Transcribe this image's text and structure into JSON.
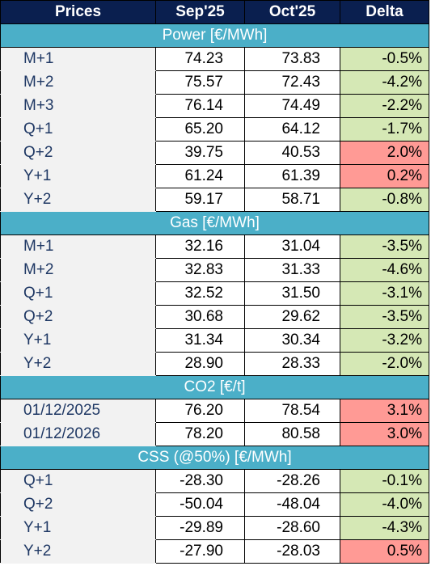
{
  "header": {
    "col1": "Prices",
    "col2": "Sep'25",
    "col3": "Oct'25",
    "col4": "Delta"
  },
  "sections": [
    {
      "title": "Power [€/MWh]",
      "rows": [
        {
          "label": "M+1",
          "sep": "74.23",
          "oct": "73.83",
          "delta": "-0.5%"
        },
        {
          "label": "M+2",
          "sep": "75.57",
          "oct": "72.43",
          "delta": "-4.2%"
        },
        {
          "label": "M+3",
          "sep": "76.14",
          "oct": "74.49",
          "delta": "-2.2%"
        },
        {
          "label": "Q+1",
          "sep": "65.20",
          "oct": "64.12",
          "delta": "-1.7%"
        },
        {
          "label": "Q+2",
          "sep": "39.75",
          "oct": "40.53",
          "delta": "2.0%"
        },
        {
          "label": "Y+1",
          "sep": "61.24",
          "oct": "61.39",
          "delta": "0.2%"
        },
        {
          "label": "Y+2",
          "sep": "59.17",
          "oct": "58.71",
          "delta": "-0.8%"
        }
      ]
    },
    {
      "title": "Gas [€/MWh]",
      "rows": [
        {
          "label": "M+1",
          "sep": "32.16",
          "oct": "31.04",
          "delta": "-3.5%"
        },
        {
          "label": "M+2",
          "sep": "32.83",
          "oct": "31.33",
          "delta": "-4.6%"
        },
        {
          "label": "Q+1",
          "sep": "32.52",
          "oct": "31.50",
          "delta": "-3.1%"
        },
        {
          "label": "Q+2",
          "sep": "30.68",
          "oct": "29.62",
          "delta": "-3.5%"
        },
        {
          "label": "Y+1",
          "sep": "31.34",
          "oct": "30.34",
          "delta": "-3.2%"
        },
        {
          "label": "Y+2",
          "sep": "28.90",
          "oct": "28.33",
          "delta": "-2.0%"
        }
      ]
    },
    {
      "title": "CO2 [€/t]",
      "rows": [
        {
          "label": "01/12/2025",
          "sep": "76.20",
          "oct": "78.54",
          "delta": "3.1%"
        },
        {
          "label": "01/12/2026",
          "sep": "78.20",
          "oct": "80.58",
          "delta": "3.0%"
        }
      ]
    },
    {
      "title": "CSS (@50%) [€/MWh]",
      "rows": [
        {
          "label": "Q+1",
          "sep": "-28.30",
          "oct": "-28.26",
          "delta": "-0.1%"
        },
        {
          "label": "Q+2",
          "sep": "-50.04",
          "oct": "-48.04",
          "delta": "-4.0%"
        },
        {
          "label": "Y+1",
          "sep": "-29.89",
          "oct": "-28.60",
          "delta": "-4.3%"
        },
        {
          "label": "Y+2",
          "sep": "-27.90",
          "oct": "-28.03",
          "delta": "0.5%"
        }
      ]
    }
  ],
  "colors": {
    "header_bg": "#0a1f4f",
    "section_bg": "#4bafc8",
    "negative_delta_bg": "#d5e8b5",
    "positive_delta_bg": "#ff9a95",
    "label_bg": "#f2f2f2"
  }
}
